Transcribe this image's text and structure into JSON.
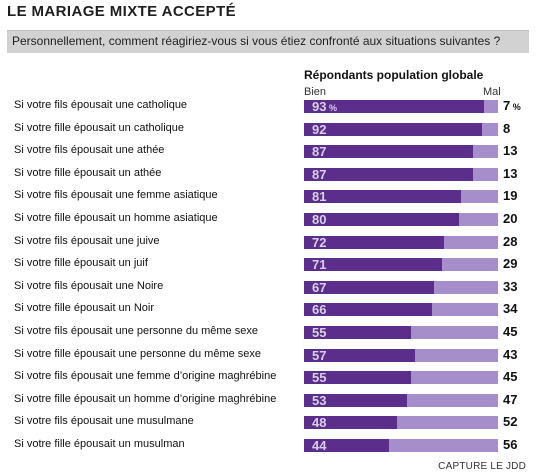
{
  "header": {
    "title": "LE MARIAGE MIXTE ACCEPTÉ",
    "question": "Personnellement, comment réagiriez-vous si vous étiez confronté aux situations suivantes ?"
  },
  "credit": "CAPTURE LE JDD",
  "chart_data": {
    "type": "bar",
    "title": "Répondants population globale",
    "legend": [
      "Bien",
      "Mal"
    ],
    "percent_suffix": "%",
    "categories": [
      "Si votre fils épousait une catholique",
      "Si votre fille épousait un catholique",
      "Si votre fils épousait une athée",
      "Si votre fille épousait un athée",
      "Si votre fils épousait une femme asiatique",
      "Si votre fille épousait un homme asiatique",
      "Si votre fils épousait une juive",
      "Si votre fille épousait un juif",
      "Si votre fils épousait une Noire",
      "Si votre fille épousait un Noir",
      "Si votre fils épousait une personne du même sexe",
      "Si votre fille épousait une personne du même sexe",
      "Si votre fils épousait une femme d’origine maghrébine",
      "Si votre fille épousait un homme d’origine maghrébine",
      "Si votre fils épousait une musulmane",
      "Si votre fille épousait un musulman"
    ],
    "series": [
      {
        "name": "Bien",
        "values": [
          93,
          92,
          87,
          87,
          81,
          80,
          72,
          71,
          67,
          66,
          55,
          57,
          55,
          53,
          48,
          44
        ],
        "color": "#5b2e8c"
      },
      {
        "name": "Mal",
        "values": [
          7,
          8,
          13,
          13,
          19,
          20,
          28,
          29,
          33,
          34,
          45,
          43,
          45,
          47,
          52,
          56
        ],
        "color": "#a58ec9"
      }
    ],
    "ylim": [
      0,
      100
    ]
  }
}
